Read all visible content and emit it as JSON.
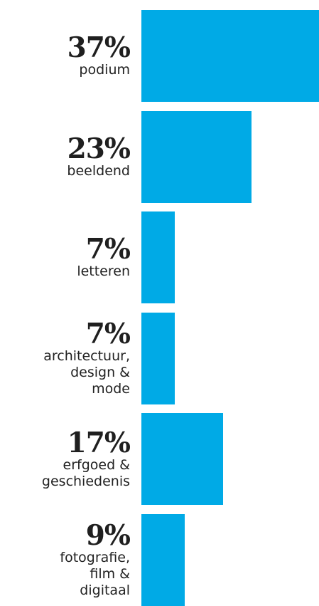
{
  "chart_data": {
    "type": "bar",
    "orientation": "horizontal",
    "unit": "%",
    "bar_color": "#00aae6",
    "text_color": "#1f1f1f",
    "categories": [
      "podium",
      "beeldend",
      "letteren",
      "architectuur,\ndesign &\nmode",
      "erfgoed &\ngeschiedenis",
      "fotografie,\nfilm &\ndigitaal"
    ],
    "values": [
      37,
      23,
      7,
      7,
      17,
      9
    ],
    "value_labels": [
      "37%",
      "23%",
      "7%",
      "7%",
      "17%",
      "9%"
    ],
    "xlim": [
      0,
      37
    ]
  }
}
